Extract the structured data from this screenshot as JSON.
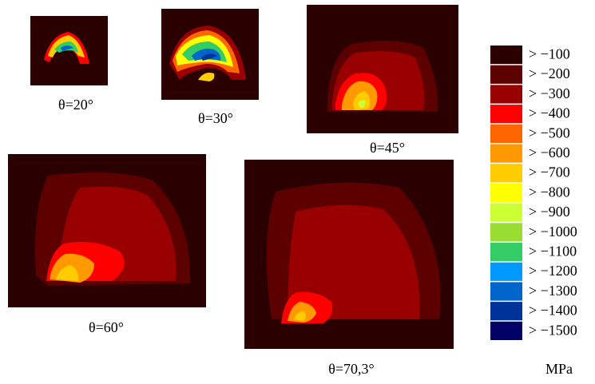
{
  "panels": [
    {
      "label": "θ=20°"
    },
    {
      "label": "θ=30°"
    },
    {
      "label": "θ=45°"
    },
    {
      "label": "θ=60°"
    },
    {
      "label": "θ=70,3°"
    }
  ],
  "legend": {
    "unit": "MPa",
    "entries": [
      {
        "label": "> −100",
        "color": "#2b0000"
      },
      {
        "label": "> −200",
        "color": "#5c0000"
      },
      {
        "label": "> −300",
        "color": "#990000"
      },
      {
        "label": "> −400",
        "color": "#ff0000"
      },
      {
        "label": "> −500",
        "color": "#ff6600"
      },
      {
        "label": "> −600",
        "color": "#ff9900"
      },
      {
        "label": "> −700",
        "color": "#ffcc00"
      },
      {
        "label": "> −800",
        "color": "#ffff00"
      },
      {
        "label": "> −900",
        "color": "#ccff33"
      },
      {
        "label": "> −1000",
        "color": "#99dd33"
      },
      {
        "label": "> −1100",
        "color": "#33cc66"
      },
      {
        "label": "> −1200",
        "color": "#0099ff"
      },
      {
        "label": "> −1300",
        "color": "#0066cc"
      },
      {
        "label": "> −1400",
        "color": "#003399"
      },
      {
        "label": "> −1500",
        "color": "#000066"
      }
    ]
  }
}
